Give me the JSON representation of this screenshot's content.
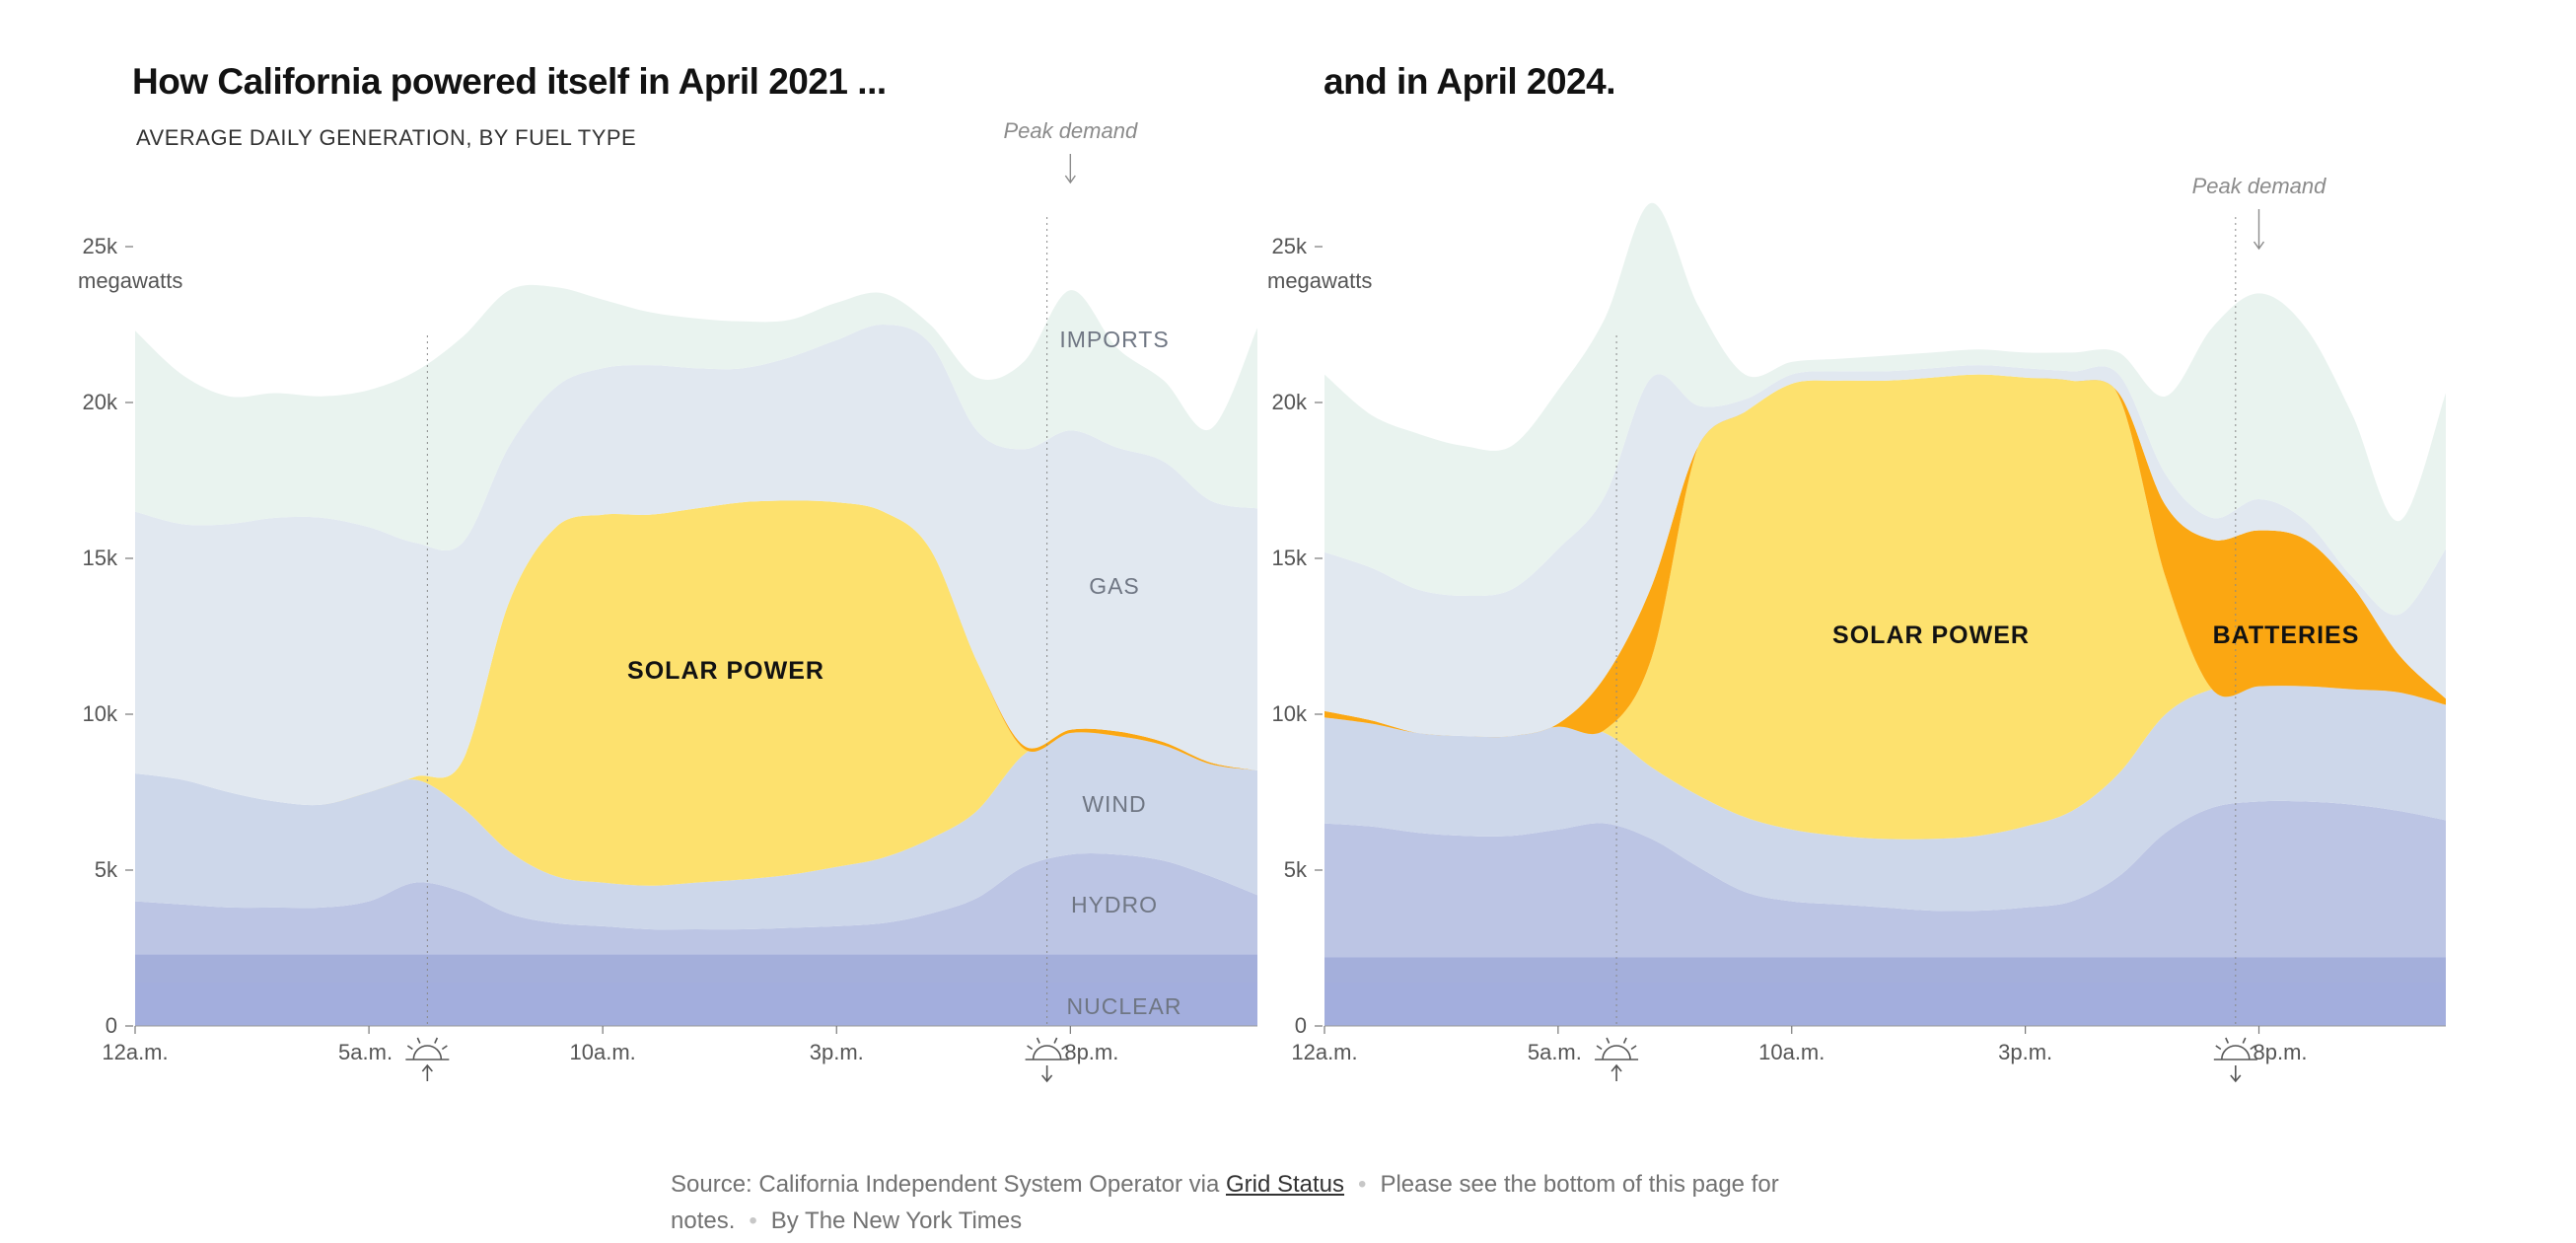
{
  "titles": {
    "left": "How California powered itself in April 2021 ...",
    "right": "and in April 2024."
  },
  "subtitle": "AVERAGE DAILY GENERATION, BY FUEL TYPE",
  "source": {
    "text": "Source: California Independent System Operator via",
    "link": "Grid Status",
    "notes": "Please see the bottom of this page for notes.",
    "byline": "By The New York Times"
  },
  "colors": {
    "nuclear": "#a4afdb",
    "hydro": "#bcc5e4",
    "wind": "#cdd7ea",
    "gas": "#e1e8f0",
    "imports": "#e9f3ef",
    "solar": "#fde16e",
    "batteries": "#fba712"
  },
  "labels": {
    "imports": "IMPORTS",
    "gas": "GAS",
    "wind": "WIND",
    "hydro": "HYDRO",
    "nuclear": "NUCLEAR",
    "solar": "SOLAR POWER",
    "batteries": "BATTERIES",
    "peak": "Peak demand",
    "unit": "megawatts"
  },
  "chart_data": [
    {
      "type": "area",
      "stacked": true,
      "title": "How California powered itself in April 2021 ...",
      "subtitle": "AVERAGE DAILY GENERATION, BY FUEL TYPE",
      "xlabel": "",
      "ylabel": "megawatts",
      "ylim": [
        0,
        25000
      ],
      "yticks": [
        "0",
        "5k",
        "10k",
        "15k",
        "20k",
        "25k"
      ],
      "xticks": [
        {
          "hour": 0,
          "label": "12a.m."
        },
        {
          "hour": 5,
          "label": "5a.m."
        },
        {
          "hour": 10,
          "label": "10a.m."
        },
        {
          "hour": 15,
          "label": "3p.m."
        },
        {
          "hour": 20,
          "label": "8p.m."
        }
      ],
      "sunrise_hour": 6.25,
      "sunset_hour": 19.5,
      "peak_hour": 20,
      "x": [
        0,
        1,
        2,
        3,
        4,
        5,
        6,
        7,
        8,
        9,
        10,
        11,
        12,
        13,
        14,
        15,
        16,
        17,
        18,
        19,
        20,
        21,
        22,
        23,
        24
      ],
      "series": [
        {
          "name": "Nuclear",
          "key": "nuclear",
          "values": [
            2300,
            2300,
            2300,
            2300,
            2300,
            2300,
            2300,
            2300,
            2300,
            2300,
            2300,
            2300,
            2300,
            2300,
            2300,
            2300,
            2300,
            2300,
            2300,
            2300,
            2300,
            2300,
            2300,
            2300,
            2300
          ]
        },
        {
          "name": "Hydro",
          "key": "hydro",
          "values": [
            1700,
            1600,
            1500,
            1500,
            1500,
            1700,
            2300,
            2000,
            1300,
            1000,
            900,
            800,
            800,
            800,
            850,
            900,
            1000,
            1300,
            1800,
            2800,
            3200,
            3200,
            3000,
            2500,
            1900
          ]
        },
        {
          "name": "Wind",
          "key": "wind",
          "values": [
            4100,
            4000,
            3700,
            3400,
            3300,
            3500,
            3300,
            2700,
            2000,
            1500,
            1400,
            1400,
            1500,
            1600,
            1700,
            1900,
            2100,
            2400,
            2800,
            3600,
            3900,
            3800,
            3700,
            3600,
            4000
          ]
        },
        {
          "name": "Solar",
          "key": "solar",
          "values": [
            0,
            0,
            0,
            0,
            0,
            0,
            100,
            1500,
            8000,
            11200,
            11800,
            11900,
            12000,
            12100,
            12000,
            11700,
            11100,
            9300,
            4800,
            200,
            0,
            0,
            0,
            0,
            0
          ]
        },
        {
          "name": "Batteries",
          "key": "batteries",
          "values": [
            0,
            0,
            0,
            0,
            0,
            0,
            0,
            0,
            0,
            0,
            0,
            0,
            0,
            0,
            0,
            0,
            0,
            0,
            0,
            100,
            100,
            150,
            100,
            50,
            0
          ]
        },
        {
          "name": "Gas",
          "key": "gas",
          "values": [
            8400,
            8200,
            8600,
            9100,
            9200,
            8500,
            7500,
            7000,
            5000,
            4500,
            4700,
            4800,
            4500,
            4300,
            4600,
            5200,
            6000,
            6600,
            7400,
            9500,
            9600,
            9100,
            9000,
            8400,
            8400
          ]
        },
        {
          "name": "Imports",
          "key": "imports",
          "values": [
            5800,
            4800,
            4100,
            4000,
            3900,
            4400,
            5500,
            6600,
            5000,
            3200,
            2200,
            1700,
            1600,
            1500,
            1200,
            1200,
            1000,
            600,
            1700,
            2800,
            4500,
            3200,
            2600,
            2300,
            5800
          ]
        }
      ]
    },
    {
      "type": "area",
      "stacked": true,
      "title": "and in April 2024.",
      "xlabel": "",
      "ylabel": "megawatts",
      "ylim": [
        0,
        25000
      ],
      "yticks": [
        "0",
        "5k",
        "10k",
        "15k",
        "20k",
        "25k"
      ],
      "xticks": [
        {
          "hour": 0,
          "label": "12a.m."
        },
        {
          "hour": 5,
          "label": "5a.m."
        },
        {
          "hour": 10,
          "label": "10a.m."
        },
        {
          "hour": 15,
          "label": "3p.m."
        },
        {
          "hour": 20,
          "label": "8p.m."
        }
      ],
      "sunrise_hour": 6.25,
      "sunset_hour": 19.5,
      "peak_hour": 20,
      "x": [
        0,
        1,
        2,
        3,
        4,
        5,
        6,
        7,
        8,
        9,
        10,
        11,
        12,
        13,
        14,
        15,
        16,
        17,
        18,
        19,
        20,
        21,
        22,
        23,
        24
      ],
      "series": [
        {
          "name": "Nuclear",
          "key": "nuclear",
          "values": [
            2200,
            2200,
            2200,
            2200,
            2200,
            2200,
            2200,
            2200,
            2200,
            2200,
            2200,
            2200,
            2200,
            2200,
            2200,
            2200,
            2200,
            2200,
            2200,
            2200,
            2200,
            2200,
            2200,
            2200,
            2200
          ]
        },
        {
          "name": "Hydro",
          "key": "hydro",
          "values": [
            4300,
            4200,
            4000,
            3900,
            3900,
            4100,
            4300,
            3800,
            2900,
            2100,
            1800,
            1700,
            1600,
            1500,
            1500,
            1600,
            1800,
            2600,
            4000,
            4800,
            5000,
            5000,
            4900,
            4700,
            4400
          ]
        },
        {
          "name": "Wind",
          "key": "wind",
          "values": [
            3400,
            3300,
            3200,
            3200,
            3200,
            3300,
            2900,
            2300,
            2300,
            2400,
            2300,
            2200,
            2200,
            2300,
            2400,
            2600,
            2900,
            3300,
            3800,
            3800,
            3700,
            3700,
            3700,
            3800,
            3700
          ]
        },
        {
          "name": "Solar",
          "key": "solar",
          "values": [
            0,
            0,
            0,
            0,
            0,
            0,
            100,
            3500,
            11200,
            13000,
            14300,
            14600,
            14700,
            14800,
            14800,
            14400,
            13800,
            12100,
            4400,
            0,
            0,
            0,
            0,
            0,
            0
          ]
        },
        {
          "name": "Batteries",
          "key": "batteries",
          "values": [
            200,
            100,
            0,
            0,
            0,
            100,
            1700,
            2300,
            0,
            0,
            0,
            0,
            0,
            0,
            0,
            0,
            0,
            100,
            2300,
            4800,
            5000,
            4700,
            3300,
            1200,
            200
          ]
        },
        {
          "name": "Gas",
          "key": "gas",
          "values": [
            5100,
            4900,
            4600,
            4500,
            4700,
            5600,
            5800,
            6700,
            1300,
            400,
            300,
            300,
            300,
            300,
            300,
            300,
            300,
            600,
            1000,
            700,
            1000,
            600,
            300,
            1300,
            4800
          ]
        },
        {
          "name": "Imports",
          "key": "imports",
          "values": [
            5700,
            4900,
            5000,
            4800,
            4600,
            5100,
            5700,
            5600,
            3200,
            800,
            400,
            400,
            500,
            500,
            500,
            500,
            600,
            700,
            2500,
            6100,
            6600,
            6200,
            5200,
            3000,
            5000
          ]
        }
      ]
    }
  ]
}
